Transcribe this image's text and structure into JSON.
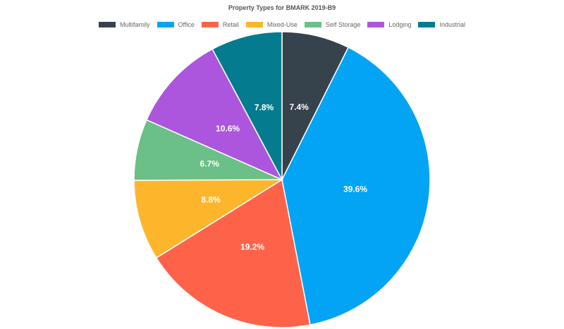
{
  "chart_data": {
    "type": "pie",
    "title": "Property Types for BMARK 2019-B9",
    "legend_position": "top",
    "categories": [
      "Multifamily",
      "Office",
      "Retail",
      "Mixed-Use",
      "Self Storage",
      "Lodging",
      "Industrial"
    ],
    "values": [
      7.4,
      39.6,
      19.2,
      8.8,
      6.7,
      10.6,
      7.8
    ],
    "value_labels": [
      "7.4%",
      "39.6%",
      "19.2%",
      "8.8%",
      "6.7%",
      "10.6%",
      "7.8%"
    ],
    "colors": [
      "#36424c",
      "#02a4f3",
      "#fe634a",
      "#fdb62b",
      "#6ac087",
      "#ac56de",
      "#047b8f"
    ],
    "start": "top",
    "direction": "clockwise"
  }
}
